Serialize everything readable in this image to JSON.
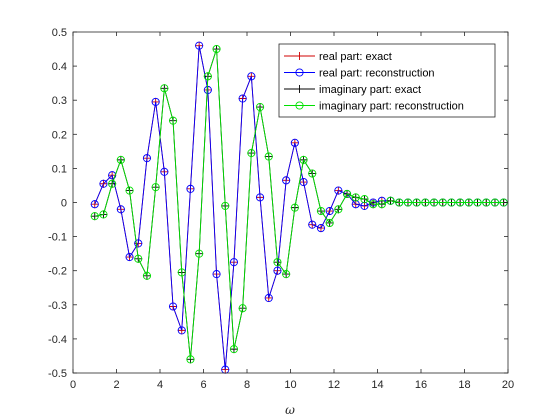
{
  "chart_data": {
    "type": "line",
    "title": "",
    "xlabel": "ω",
    "ylabel": "",
    "xlim": [
      0,
      20
    ],
    "ylim": [
      -0.5,
      0.5
    ],
    "xticks": [
      "0",
      "2",
      "4",
      "6",
      "8",
      "10",
      "12",
      "14",
      "16",
      "18",
      "20"
    ],
    "yticks": [
      "-0.5",
      "-0.4",
      "-0.3",
      "-0.2",
      "-0.1",
      "0",
      "0.1",
      "0.2",
      "0.3",
      "0.4",
      "0.5"
    ],
    "grid": false,
    "legend_position": "top-right",
    "x": [
      1.0,
      1.4,
      1.8,
      2.2,
      2.6,
      3.0,
      3.4,
      3.8,
      4.2,
      4.6,
      5.0,
      5.4,
      5.8,
      6.2,
      6.6,
      7.0,
      7.4,
      7.8,
      8.2,
      8.6,
      9.0,
      9.4,
      9.8,
      10.2,
      10.6,
      11.0,
      11.4,
      11.8,
      12.2,
      12.6,
      13.0,
      13.4,
      13.8,
      14.2,
      14.6,
      15.0,
      15.4,
      15.8,
      16.2,
      16.6,
      17.0,
      17.4,
      17.8,
      18.2,
      18.6,
      19.0,
      19.4,
      19.8,
      20.2
    ],
    "series": [
      {
        "name": "real part: exact",
        "color": "#d00000",
        "marker": "plus",
        "values": [
          -0.005,
          0.055,
          0.08,
          -0.02,
          -0.16,
          -0.12,
          0.13,
          0.295,
          0.09,
          -0.305,
          -0.375,
          0.04,
          0.46,
          0.33,
          -0.21,
          -0.49,
          -0.175,
          0.305,
          0.37,
          0.015,
          -0.28,
          -0.2,
          0.065,
          0.175,
          0.06,
          -0.065,
          -0.075,
          -0.025,
          0.035,
          0.025,
          -0.005,
          -0.01,
          0.0,
          0.005,
          0.005,
          0.0,
          0.0,
          0.0,
          0.0,
          0.0,
          0.0,
          0.0,
          0.0,
          0.0,
          0.0,
          0.0,
          0.0,
          0.0,
          0.0
        ]
      },
      {
        "name": "real part: reconstruction",
        "color": "#0000ff",
        "marker": "circle",
        "values": [
          -0.005,
          0.055,
          0.08,
          -0.02,
          -0.16,
          -0.12,
          0.13,
          0.295,
          0.09,
          -0.305,
          -0.375,
          0.04,
          0.46,
          0.33,
          -0.21,
          -0.49,
          -0.175,
          0.305,
          0.37,
          0.015,
          -0.28,
          -0.2,
          0.065,
          0.175,
          0.06,
          -0.065,
          -0.075,
          -0.025,
          0.035,
          0.025,
          -0.005,
          -0.01,
          0.0,
          0.005,
          0.005,
          0.0,
          0.0,
          0.0,
          0.0,
          0.0,
          0.0,
          0.0,
          0.0,
          0.0,
          0.0,
          0.0,
          0.0,
          0.0,
          0.0
        ]
      },
      {
        "name": "imaginary part: exact",
        "color": "#000000",
        "marker": "plus",
        "values": [
          -0.04,
          -0.035,
          0.055,
          0.125,
          0.035,
          -0.165,
          -0.215,
          0.045,
          0.335,
          0.24,
          -0.205,
          -0.46,
          -0.15,
          0.37,
          0.45,
          -0.01,
          -0.43,
          -0.31,
          0.145,
          0.28,
          0.135,
          -0.175,
          -0.21,
          -0.015,
          0.125,
          0.085,
          -0.025,
          -0.06,
          -0.02,
          0.025,
          0.015,
          0.01,
          -0.005,
          -0.005,
          0.005,
          0.0,
          0.0,
          0.0,
          0.0,
          0.0,
          0.0,
          0.0,
          0.0,
          0.0,
          0.0,
          0.0,
          0.0,
          0.0,
          0.0
        ]
      },
      {
        "name": "imaginary part: reconstruction",
        "color": "#00e000",
        "marker": "circle",
        "values": [
          -0.04,
          -0.035,
          0.055,
          0.125,
          0.035,
          -0.165,
          -0.215,
          0.045,
          0.335,
          0.24,
          -0.205,
          -0.46,
          -0.15,
          0.37,
          0.45,
          -0.01,
          -0.43,
          -0.31,
          0.145,
          0.28,
          0.135,
          -0.175,
          -0.21,
          -0.015,
          0.125,
          0.085,
          -0.025,
          -0.06,
          -0.02,
          0.025,
          0.015,
          0.01,
          -0.005,
          -0.005,
          0.005,
          0.0,
          0.0,
          0.0,
          0.0,
          0.0,
          0.0,
          0.0,
          0.0,
          0.0,
          0.0,
          0.0,
          0.0,
          0.0,
          0.0
        ]
      }
    ]
  }
}
